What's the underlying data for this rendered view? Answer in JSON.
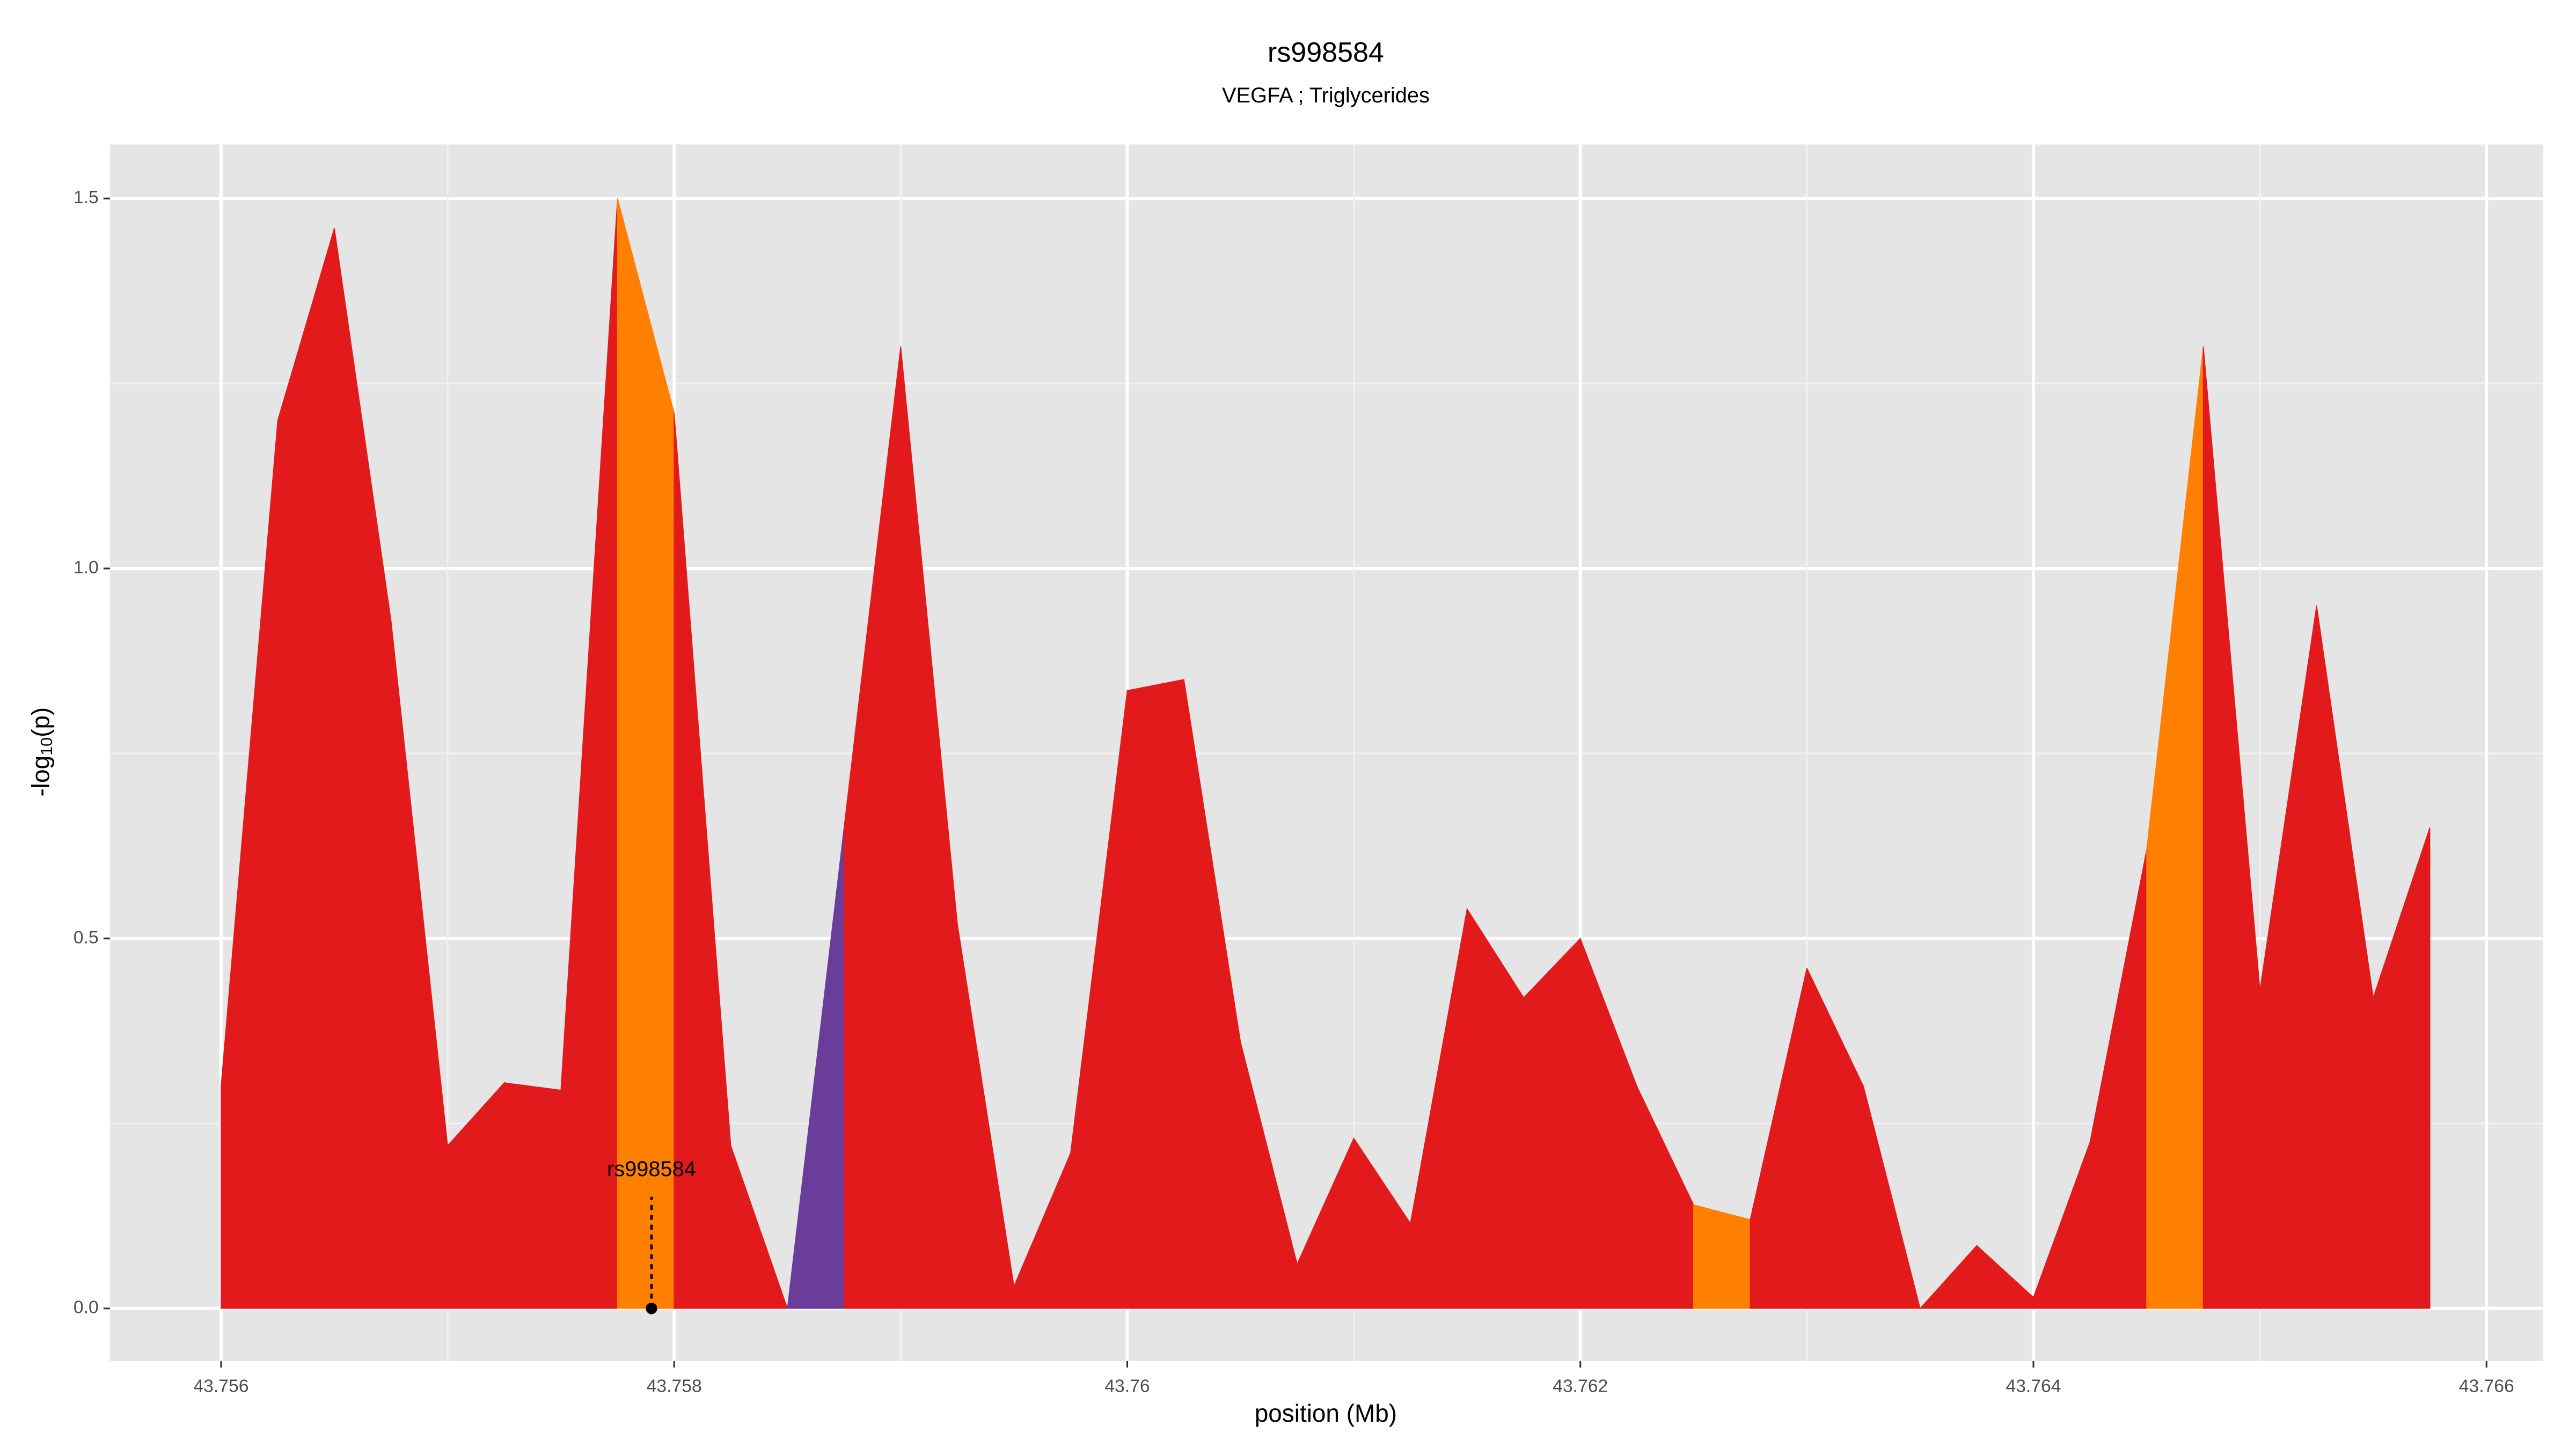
{
  "chart_data": {
    "type": "area",
    "title": "rs998584",
    "subtitle": "VEGFA ; Triglycerides",
    "xlabel": "position (Mb)",
    "ylabel_parts": [
      "-log",
      "10",
      "(p)"
    ],
    "x": [
      43.756,
      43.75625,
      43.7565,
      43.75675,
      43.757,
      43.75725,
      43.7575,
      43.75775,
      43.758,
      43.75825,
      43.7585,
      43.75875,
      43.759,
      43.75925,
      43.7595,
      43.75975,
      43.76,
      43.76025,
      43.7605,
      43.76075,
      43.761,
      43.76125,
      43.7615,
      43.76175,
      43.762,
      43.76225,
      43.7625,
      43.76275,
      43.763,
      43.76325,
      43.7635,
      43.76375,
      43.764,
      43.76425,
      43.7645,
      43.76475,
      43.765,
      43.76525,
      43.7655,
      43.76575
    ],
    "series": [
      {
        "values": [
          0.3,
          1.2,
          1.46,
          0.93,
          0.22,
          0.305,
          0.295,
          1.5,
          1.21,
          0.22,
          0.0,
          0.65,
          1.3,
          0.52,
          0.03,
          0.21,
          0.835,
          0.85,
          0.36,
          0.06,
          0.23,
          0.115,
          0.54,
          0.42,
          0.5,
          0.3,
          0.14,
          0.12,
          0.46,
          0.3,
          0.0,
          0.085,
          0.015,
          0.225,
          0.62,
          1.3,
          0.43,
          0.95,
          0.42,
          0.65
        ],
        "segment_colors": [
          "#e31a1c",
          "#e31a1c",
          "#e31a1c",
          "#e31a1c",
          "#e31a1c",
          "#e31a1c",
          "#e31a1c",
          "#ff7f00",
          "#e31a1c",
          "#e31a1c",
          "#6a3d9a",
          "#e31a1c",
          "#e31a1c",
          "#e31a1c",
          "#e31a1c",
          "#e31a1c",
          "#e31a1c",
          "#e31a1c",
          "#e31a1c",
          "#e31a1c",
          "#e31a1c",
          "#e31a1c",
          "#e31a1c",
          "#e31a1c",
          "#e31a1c",
          "#e31a1c",
          "#ff7f00",
          "#e31a1c",
          "#e31a1c",
          "#e31a1c",
          "#e31a1c",
          "#e31a1c",
          "#e31a1c",
          "#e31a1c",
          "#ff7f00",
          "#e31a1c",
          "#e31a1c",
          "#e31a1c",
          "#e31a1c"
        ]
      }
    ],
    "annotation": {
      "text": "rs998584",
      "x": 43.7579,
      "y": 0
    },
    "xlim": [
      43.75551,
      43.76625
    ],
    "ylim": [
      -0.071,
      1.573
    ],
    "xticks": [
      43.756,
      43.758,
      43.76,
      43.762,
      43.764,
      43.766
    ],
    "yticks": [
      {
        "value": 0,
        "label": "0.0"
      },
      0.5,
      {
        "value": 1,
        "label": "1.0"
      },
      1.5
    ],
    "grid": true
  }
}
